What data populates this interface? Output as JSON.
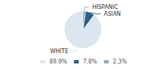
{
  "chart_data": {
    "type": "pie",
    "categories": [
      "WHITE",
      "ASIAN",
      "HISPANIC"
    ],
    "values": [
      89.9,
      7.8,
      2.3
    ],
    "value_labels": [
      "89.9%",
      "7.8%",
      "2.3%"
    ],
    "colors": [
      "#dce6f1",
      "#2e5f82",
      "#8eafc2"
    ],
    "legend": "bottom"
  }
}
